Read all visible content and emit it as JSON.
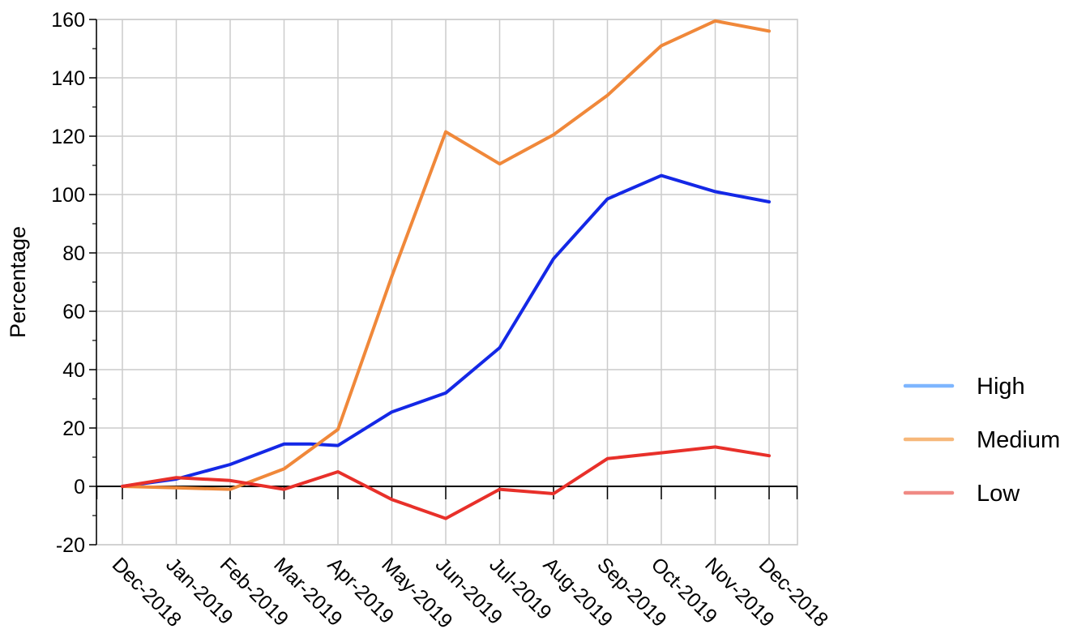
{
  "chart_data": {
    "type": "line",
    "title": "",
    "xlabel": "",
    "ylabel": "Percentage",
    "categories": [
      "Dec-2018",
      "Jan-2019",
      "Feb-2019",
      "Mar-2019",
      "Apr-2019",
      "May-2019",
      "Jun-2019",
      "Jul-2019",
      "Aug-2019",
      "Sep-2019",
      "Oct-2019",
      "Nov-2019",
      "Dec-2018"
    ],
    "ylim": [
      -20,
      160
    ],
    "yticks": [
      -20,
      0,
      20,
      40,
      60,
      80,
      100,
      120,
      140,
      160
    ],
    "grid": true,
    "legend_position": "right",
    "series": [
      {
        "name": "High",
        "color": "#1428e6",
        "legend_color": "#7eb6ff",
        "points": [
          [
            0,
            0
          ],
          [
            1,
            2.5
          ],
          [
            2,
            7.5
          ],
          [
            3,
            14.5
          ],
          [
            3.5,
            14.5
          ],
          [
            4,
            14
          ],
          [
            5,
            25.5
          ],
          [
            6,
            32
          ],
          [
            7,
            47.5
          ],
          [
            8,
            78
          ],
          [
            9,
            98.5
          ],
          [
            10,
            106.5
          ],
          [
            11,
            101
          ],
          [
            12,
            97.5
          ]
        ]
      },
      {
        "name": "Medium",
        "color": "#f0883a",
        "legend_color": "#f7b87a",
        "points": [
          [
            0,
            0
          ],
          [
            1,
            -0.5
          ],
          [
            2,
            -1
          ],
          [
            3,
            6
          ],
          [
            4,
            19.5
          ],
          [
            5,
            72
          ],
          [
            6,
            121.5
          ],
          [
            7,
            110.5
          ],
          [
            8,
            120.5
          ],
          [
            9,
            134
          ],
          [
            10,
            151
          ],
          [
            11,
            159.5
          ],
          [
            12,
            156
          ]
        ]
      },
      {
        "name": "Low",
        "color": "#e8302a",
        "legend_color": "#f08a84",
        "points": [
          [
            0,
            0
          ],
          [
            1,
            3
          ],
          [
            2,
            2
          ],
          [
            3,
            -1
          ],
          [
            4,
            5
          ],
          [
            5,
            -4.5
          ],
          [
            6,
            -11
          ],
          [
            7,
            -1
          ],
          [
            8,
            -2.5
          ],
          [
            9,
            9.5
          ],
          [
            10,
            11.5
          ],
          [
            11,
            13.5
          ],
          [
            12,
            10.5
          ]
        ]
      }
    ]
  }
}
